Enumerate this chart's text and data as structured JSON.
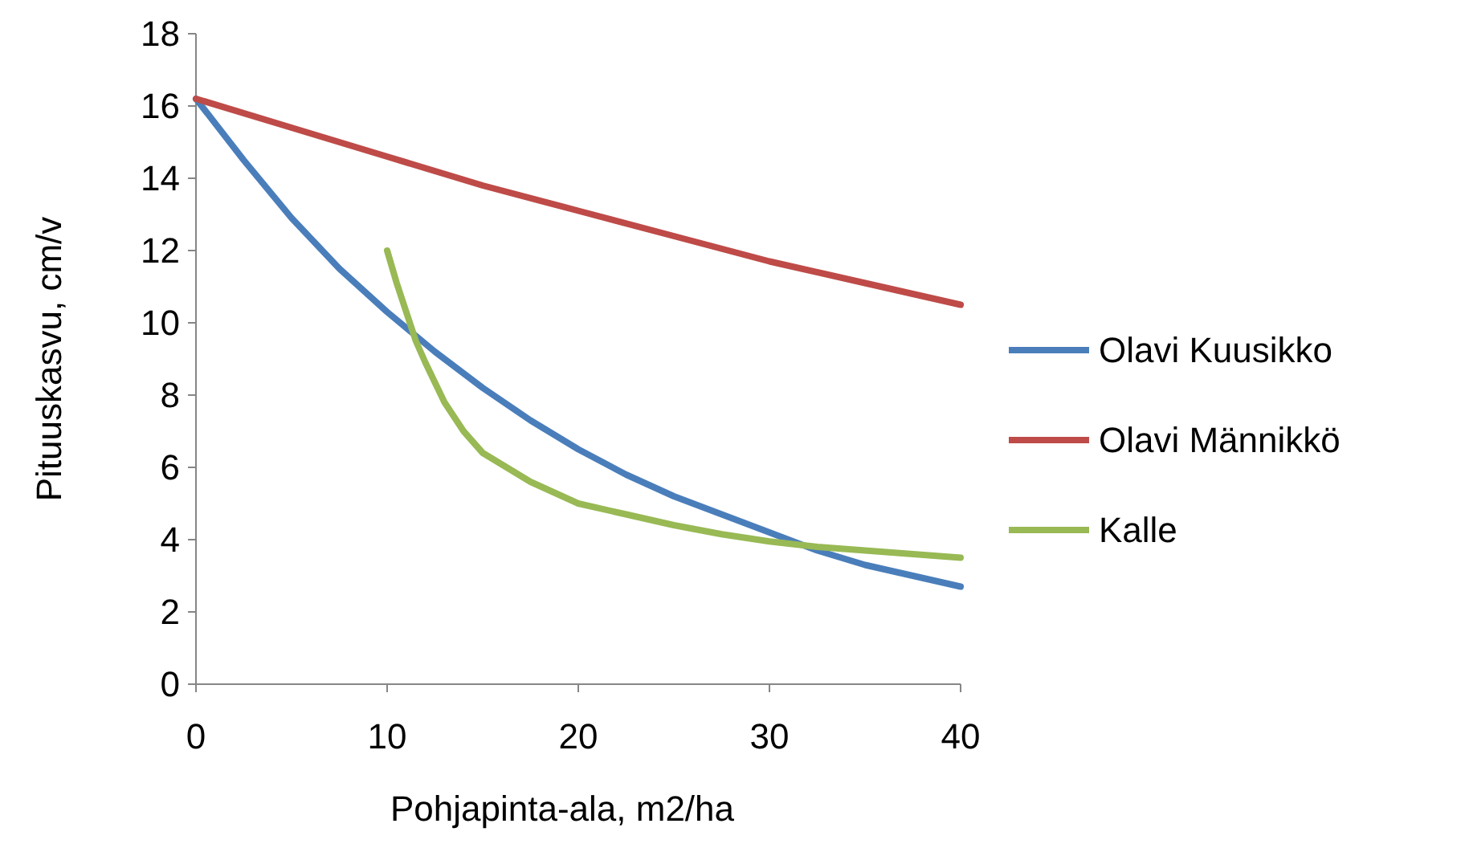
{
  "chart_data": {
    "type": "line",
    "xlabel": "Pohjapinta-ala, m2/ha",
    "ylabel": "Pituuskasvu, cm/v",
    "xlim": [
      0,
      40
    ],
    "xticks": [
      0,
      10,
      20,
      30,
      40
    ],
    "ylim": [
      0,
      18
    ],
    "yticks": [
      0,
      2,
      4,
      6,
      8,
      10,
      12,
      14,
      16,
      18
    ],
    "legend": "right",
    "grid": false,
    "marker": "none",
    "line_style": "solid",
    "series": [
      {
        "name": "Olavi Kuusikko",
        "color": "#4a7ebb",
        "x": [
          0,
          2.5,
          5,
          7.5,
          10,
          12.5,
          15,
          17.5,
          20,
          22.5,
          25,
          27.5,
          30,
          32.5,
          35,
          37.5,
          40
        ],
        "values": [
          16.2,
          14.5,
          12.9,
          11.5,
          10.3,
          9.2,
          8.2,
          7.3,
          6.5,
          5.8,
          5.2,
          4.7,
          4.2,
          3.7,
          3.3,
          3.0,
          2.7
        ]
      },
      {
        "name": "Olavi Männikkö",
        "color": "#be4b48",
        "x": [
          0,
          5,
          10,
          15,
          20,
          25,
          30,
          35,
          40
        ],
        "values": [
          16.2,
          15.4,
          14.6,
          13.8,
          13.1,
          12.4,
          11.7,
          11.1,
          10.5
        ]
      },
      {
        "name": "Kalle",
        "color": "#98b954",
        "x": [
          10,
          10.5,
          11,
          11.5,
          12,
          13,
          14,
          15,
          17.5,
          20,
          22.5,
          25,
          27.5,
          30,
          32.5,
          35,
          37.5,
          40
        ],
        "values": [
          12,
          11.1,
          10.3,
          9.5,
          8.9,
          7.8,
          7.0,
          6.4,
          5.6,
          5.0,
          4.7,
          4.4,
          4.15,
          3.95,
          3.8,
          3.7,
          3.6,
          3.5
        ]
      }
    ]
  }
}
